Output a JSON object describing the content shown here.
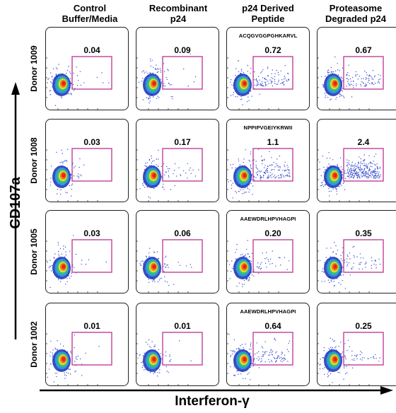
{
  "chart_data": {
    "type": "scatter",
    "subtype": "flow-cytometry-density-grid",
    "columns": [
      {
        "line1": "Control",
        "line2": "Buffer/Media"
      },
      {
        "line1": "Recombinant",
        "line2": "p24"
      },
      {
        "line1": "p24 Derived",
        "line2": "Peptide"
      },
      {
        "line1": "Proteasome",
        "line2": "Degraded p24"
      }
    ],
    "rows": [
      {
        "label": "Donor 1009",
        "values": [
          "0.04",
          "0.09",
          "0.72",
          "0.67"
        ],
        "peptide": "ACQGVGGPGHKARVL"
      },
      {
        "label": "Donor 1008",
        "values": [
          "0.03",
          "0.17",
          "1.1",
          "2.4"
        ],
        "peptide": "NPPIPVGEIYKRWII"
      },
      {
        "label": "Donor 1005",
        "values": [
          "0.03",
          "0.06",
          "0.20",
          "0.35"
        ],
        "peptide": "AAEWDRLHPVHAGPI"
      },
      {
        "label": "Donor 1002",
        "values": [
          "0.01",
          "0.01",
          "0.64",
          "0.25"
        ],
        "peptide": "AAEWDRLHPVHAGPI"
      }
    ],
    "xlabel": "Interferon-γ",
    "ylabel": "CD107a",
    "gate_color": "#c0409a",
    "density_colors": [
      "#1a2fb8",
      "#2a9de0",
      "#34c07a",
      "#e8e02a",
      "#f07a1a",
      "#e8201a"
    ],
    "scatter_color": "#3a4fd0"
  }
}
